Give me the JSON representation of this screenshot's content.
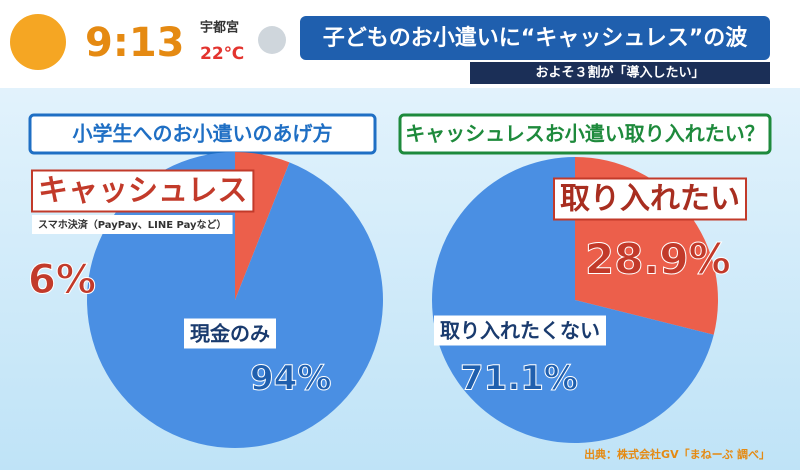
{
  "header": {
    "time": "9:13",
    "location": "宇都宮",
    "temperature": "22℃",
    "headline": "子どものお小遣いに“キャッシュレス”の波",
    "subheadline": "およそ３割が「導入したい」"
  },
  "source": "出典：株式会社GV「まねーぶ 調べ」",
  "chart_data": [
    {
      "type": "pie",
      "title": "小学生へのお小遣いのあげ方",
      "title_color": "#1f6fc4",
      "categories": [
        "キャッシュレス",
        "現金のみ"
      ],
      "values": [
        6,
        94
      ],
      "value_labels": [
        "6%",
        "94%"
      ],
      "colors": [
        "#ec5f4b",
        "#4a8fe3"
      ],
      "annotation": "スマホ決済（PayPay、LINE Payなど）"
    },
    {
      "type": "pie",
      "title": "キャッシュレスお小遣い取り入れたい？",
      "title_color": "#1e8a3c",
      "categories": [
        "取り入れたい",
        "取り入れたくない"
      ],
      "values": [
        28.9,
        71.1
      ],
      "value_labels": [
        "28.9%",
        "71.1%"
      ],
      "colors": [
        "#ec5f4b",
        "#4a8fe3"
      ]
    }
  ]
}
